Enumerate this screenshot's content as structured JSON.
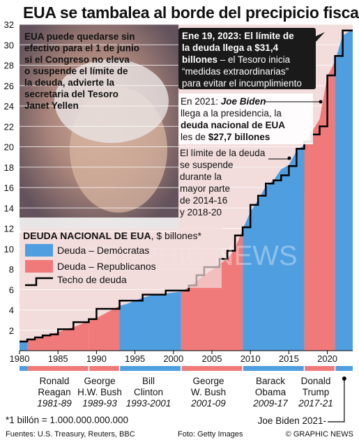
{
  "header": {
    "title": "EUA se tambalea al borde del precipicio fiscal"
  },
  "colors": {
    "democrat": "#4f9fe0",
    "republican": "#f07a7a",
    "ceiling": "#000000",
    "background": "#f2dcdc",
    "callout_box": "#1a1a1a",
    "text": "#111111"
  },
  "annotations": {
    "yellen_quote": [
      "EUA puede quedarse sin",
      "efectivo para el 1 de junio",
      "si el Congreso no eleva",
      "o suspende el límite de",
      "la deuda, advierte la",
      "secretaria del Tesoro",
      "Janet Yellen"
    ],
    "jan2023": {
      "bold_1": "Ene 19, 2023: El límite de",
      "bold_2": "la deuda llega a $31,4",
      "bold_3": "billones",
      "rest_3": " – el Tesoro inicia",
      "line_4": "“medidas extraordinarias”",
      "line_5": "para evitar el incumplimiento"
    },
    "biden2021": {
      "line_1_a": "En 2021: ",
      "line_1_b": "Joe Biden",
      "line_2": "llega a la presidencia, la",
      "line_3": "deuda nacional de EUA",
      "line_4_a": "les de ",
      "line_4_b": "$27,7 billones"
    },
    "suspension": [
      "El límite de la deuda",
      "se suspende",
      "durante la",
      "mayor parte",
      "de 2014-16",
      "y 2018-20"
    ]
  },
  "legend": {
    "heading": "DEUDA NACIONAL DE EUA",
    "unit": ", $ billones*",
    "items": [
      {
        "label": "Deuda – Demócratas",
        "color": "#4f9fe0"
      },
      {
        "label": "Deuda – Republicanos",
        "color": "#f07a7a"
      },
      {
        "label": "Techo de deuda",
        "color": "#000000"
      }
    ]
  },
  "presidents": [
    {
      "name_1": "Ronald",
      "name_2": "Reagan",
      "years": "1981-89",
      "party": "R"
    },
    {
      "name_1": "George",
      "name_2": "H.W. Bush",
      "years": "1989-93",
      "party": "R"
    },
    {
      "name_1": "Bill",
      "name_2": "Clinton",
      "years": "1993-2001",
      "party": "D"
    },
    {
      "name_1": "George",
      "name_2": "W. Bush",
      "years": "2001-09",
      "party": "R"
    },
    {
      "name_1": "Barack",
      "name_2": "Obama",
      "years": "2009-17",
      "party": "D"
    },
    {
      "name_1": "Donald",
      "name_2": "Trump",
      "years": "2017-21",
      "party": "R"
    }
  ],
  "current_president": "Joe Biden 2021-",
  "footer": {
    "note": "*1 billón = 1.000.000.000.000",
    "sources": "Fuentes: U.S. Treasury, Reuters, BBC",
    "photo": "Foto: Getty Images",
    "brand": "© GRAPHIC NEWS"
  },
  "watermark": "GRAPHIC NEWS",
  "chart_data": {
    "type": "area",
    "title": "DEUDA NACIONAL DE EUA, $ billones*",
    "xlim": [
      1980,
      2023.3
    ],
    "ylim": [
      0,
      32
    ],
    "x_ticks": [
      1980,
      1985,
      1990,
      1995,
      2000,
      2005,
      2010,
      2015,
      2020
    ],
    "y_ticks": [
      2,
      4,
      6,
      8,
      10,
      12,
      14,
      16,
      18,
      20,
      22,
      24,
      26,
      28,
      30,
      32
    ],
    "grid": "horizontal",
    "periods": [
      {
        "start": 1980,
        "end": 1981,
        "party": "D"
      },
      {
        "start": 1981,
        "end": 1989,
        "party": "R"
      },
      {
        "start": 1989,
        "end": 1993,
        "party": "R"
      },
      {
        "start": 1993,
        "end": 2001,
        "party": "D"
      },
      {
        "start": 2001,
        "end": 2009,
        "party": "R"
      },
      {
        "start": 2009,
        "end": 2017,
        "party": "D"
      },
      {
        "start": 2017,
        "end": 2021,
        "party": "R"
      },
      {
        "start": 2021,
        "end": 2023.3,
        "party": "D"
      }
    ],
    "series": [
      {
        "name": "Deuda",
        "x": [
          1980,
          1981,
          1982,
          1983,
          1984,
          1985,
          1986,
          1987,
          1988,
          1989,
          1990,
          1991,
          1992,
          1993,
          1994,
          1995,
          1996,
          1997,
          1998,
          1999,
          2000,
          2001,
          2002,
          2003,
          2004,
          2005,
          2006,
          2007,
          2008,
          2009,
          2010,
          2011,
          2012,
          2013,
          2014,
          2015,
          2016,
          2017,
          2018,
          2019,
          2020,
          2021,
          2022,
          2023
        ],
        "values": [
          0.9,
          1.0,
          1.1,
          1.4,
          1.6,
          1.8,
          2.1,
          2.3,
          2.6,
          2.9,
          3.2,
          3.6,
          4.0,
          4.4,
          4.6,
          4.9,
          5.2,
          5.4,
          5.5,
          5.6,
          5.7,
          5.8,
          6.2,
          6.8,
          7.4,
          7.9,
          8.5,
          9.0,
          10.0,
          11.9,
          13.6,
          14.8,
          16.1,
          16.7,
          17.8,
          18.2,
          19.6,
          20.2,
          21.5,
          22.7,
          26.9,
          28.4,
          30.9,
          31.4
        ]
      },
      {
        "name": "Techo de deuda",
        "x": [
          1980,
          1981,
          1982,
          1983,
          1984,
          1985,
          1986,
          1987,
          1988,
          1989,
          1990,
          1991,
          1992,
          1993,
          1994,
          1995,
          1996,
          1997,
          1998,
          1999,
          2000,
          2001,
          2002,
          2003,
          2004,
          2005,
          2006,
          2007,
          2008,
          2009,
          2010,
          2011,
          2012,
          2013,
          2014,
          2015,
          2016,
          2017,
          2018,
          2019,
          2020,
          2021,
          2022,
          2023
        ],
        "values": [
          0.9,
          1.1,
          1.3,
          1.5,
          1.6,
          2.1,
          2.1,
          2.8,
          2.8,
          3.1,
          4.1,
          4.1,
          4.1,
          4.9,
          4.9,
          4.9,
          5.5,
          5.5,
          5.5,
          5.9,
          5.9,
          5.9,
          6.4,
          7.4,
          8.2,
          8.2,
          9.0,
          9.8,
          11.3,
          12.1,
          14.3,
          15.2,
          16.4,
          16.7,
          17.2,
          18.1,
          19.8,
          20.5,
          21.2,
          22.0,
          27.0,
          28.9,
          31.4,
          31.4
        ]
      }
    ]
  }
}
